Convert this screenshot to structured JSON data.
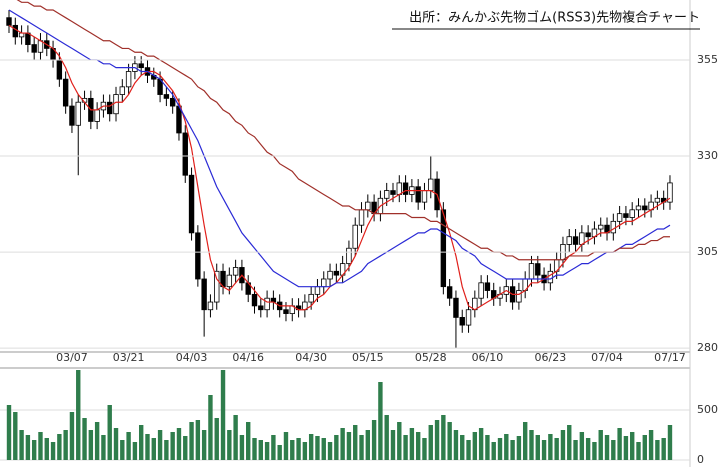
{
  "chart_data": {
    "type": "candlestick",
    "title": "出所：みんかぶ先物ゴム(RSS3)先物複合チャート",
    "categories": [
      null,
      null,
      null,
      null,
      null,
      null,
      null,
      null,
      null,
      null,
      "03/07",
      null,
      null,
      null,
      null,
      null,
      null,
      null,
      null,
      "03/21",
      null,
      null,
      null,
      null,
      null,
      null,
      null,
      null,
      null,
      "04/03",
      null,
      null,
      null,
      null,
      null,
      null,
      null,
      null,
      "04/16",
      null,
      null,
      null,
      null,
      null,
      null,
      null,
      null,
      null,
      "04/30",
      null,
      null,
      null,
      null,
      null,
      null,
      null,
      null,
      "05/15",
      null,
      null,
      null,
      null,
      null,
      null,
      null,
      null,
      null,
      "05/28",
      null,
      null,
      null,
      null,
      null,
      null,
      null,
      null,
      "06/10",
      null,
      null,
      null,
      null,
      null,
      null,
      null,
      null,
      null,
      "06/23",
      null,
      null,
      null,
      null,
      null,
      null,
      null,
      null,
      "07/04",
      null,
      null,
      null,
      null,
      null,
      null,
      null,
      null,
      null,
      "07/17"
    ],
    "open": [
      366,
      364,
      361,
      362,
      359,
      357,
      360,
      358,
      355,
      350,
      343,
      338,
      344,
      345,
      339,
      342,
      344,
      341,
      346,
      348,
      352,
      354,
      353,
      351,
      350,
      346,
      345,
      343,
      336,
      325,
      310,
      298,
      290,
      292,
      300,
      296,
      299,
      301,
      297,
      294,
      291,
      290,
      293,
      292,
      290,
      289,
      291,
      290,
      292,
      294,
      296,
      298,
      300,
      299,
      302,
      306,
      312,
      316,
      318,
      315,
      319,
      321,
      320,
      323,
      320,
      322,
      318,
      321,
      324,
      316,
      296,
      293,
      288,
      286,
      290,
      293,
      297,
      295,
      293,
      294,
      296,
      292,
      295,
      298,
      302,
      299,
      297,
      300,
      303,
      307,
      309,
      307,
      310,
      309,
      311,
      312,
      310,
      313,
      315,
      314,
      316,
      317,
      316,
      318,
      319,
      318
    ],
    "high": [
      368,
      366,
      364,
      364,
      361,
      362,
      362,
      360,
      357,
      352,
      345,
      346,
      347,
      347,
      344,
      346,
      346,
      348,
      350,
      354,
      356,
      356,
      355,
      353,
      352,
      348,
      347,
      345,
      338,
      327,
      312,
      300,
      294,
      302,
      302,
      301,
      303,
      303,
      299,
      296,
      293,
      295,
      295,
      294,
      292,
      293,
      293,
      294,
      296,
      298,
      300,
      302,
      302,
      304,
      308,
      314,
      318,
      320,
      320,
      321,
      323,
      323,
      325,
      325,
      324,
      324,
      323,
      330,
      326,
      318,
      298,
      295,
      290,
      292,
      295,
      299,
      299,
      297,
      296,
      298,
      298,
      297,
      300,
      304,
      304,
      301,
      302,
      305,
      309,
      311,
      311,
      312,
      312,
      313,
      314,
      314,
      315,
      317,
      317,
      318,
      319,
      319,
      320,
      321,
      321,
      325
    ],
    "low": [
      362,
      359,
      359,
      357,
      355,
      355,
      356,
      353,
      348,
      341,
      336,
      325,
      342,
      337,
      337,
      340,
      339,
      339,
      344,
      346,
      350,
      351,
      349,
      348,
      344,
      343,
      341,
      334,
      323,
      308,
      296,
      283,
      288,
      290,
      294,
      294,
      297,
      295,
      292,
      289,
      288,
      288,
      290,
      288,
      287,
      287,
      288,
      288,
      290,
      292,
      294,
      296,
      297,
      297,
      300,
      304,
      310,
      314,
      313,
      313,
      317,
      318,
      318,
      318,
      318,
      316,
      316,
      319,
      314,
      294,
      291,
      280,
      284,
      284,
      288,
      291,
      293,
      291,
      291,
      292,
      290,
      290,
      293,
      296,
      297,
      295,
      295,
      298,
      301,
      305,
      305,
      305,
      307,
      307,
      309,
      308,
      308,
      311,
      312,
      312,
      314,
      314,
      314,
      316,
      316,
      316
    ],
    "close": [
      364,
      361,
      362,
      359,
      357,
      360,
      358,
      355,
      350,
      343,
      338,
      344,
      345,
      339,
      342,
      344,
      341,
      346,
      348,
      352,
      354,
      353,
      351,
      350,
      346,
      345,
      343,
      336,
      325,
      310,
      298,
      290,
      292,
      300,
      296,
      299,
      301,
      297,
      294,
      291,
      290,
      293,
      292,
      290,
      289,
      291,
      290,
      292,
      294,
      296,
      298,
      300,
      299,
      302,
      306,
      312,
      316,
      318,
      315,
      319,
      321,
      320,
      323,
      320,
      322,
      318,
      321,
      324,
      316,
      296,
      293,
      288,
      286,
      290,
      293,
      297,
      295,
      293,
      294,
      296,
      292,
      295,
      298,
      302,
      299,
      297,
      300,
      303,
      307,
      309,
      307,
      310,
      309,
      311,
      312,
      310,
      313,
      315,
      314,
      316,
      317,
      316,
      318,
      319,
      318,
      323
    ],
    "up_color": "#ffffff",
    "down_color": "#000000",
    "ylim": [
      279,
      370.6
    ],
    "yticks": [
      280,
      305,
      330,
      355
    ],
    "grid": true,
    "moving_averages": [
      {
        "color": "#e0201b",
        "values": [
          364,
          363,
          362,
          362,
          361,
          360,
          359,
          358,
          356,
          353,
          349,
          346,
          344,
          342,
          342,
          343,
          343,
          344,
          344,
          346,
          349,
          351,
          352,
          352,
          351,
          349,
          347,
          344,
          339,
          332,
          322,
          312,
          303,
          298,
          296,
          295,
          297,
          299,
          297,
          295,
          293,
          292,
          292,
          291,
          291,
          291,
          290,
          290,
          291,
          293,
          294,
          296,
          297,
          299,
          301,
          304,
          308,
          312,
          315,
          317,
          318,
          319,
          320,
          321,
          321,
          321,
          321,
          321,
          320,
          315,
          310,
          304,
          296,
          291,
          290,
          291,
          292,
          293,
          294,
          295,
          294,
          294,
          295,
          297,
          297,
          298,
          299,
          300,
          302,
          304,
          305,
          307,
          308,
          309,
          310,
          310,
          311,
          312,
          313,
          313,
          314,
          315,
          316,
          317,
          318,
          319
        ]
      },
      {
        "color": "#2b2bd6",
        "values": [
          368,
          367,
          366,
          365,
          364,
          363,
          362,
          361,
          360,
          359,
          358,
          357,
          356,
          355,
          355,
          354,
          354,
          353,
          353,
          353,
          353,
          352,
          352,
          351,
          350,
          348,
          346,
          343,
          340,
          337,
          334,
          330,
          326,
          322,
          319,
          316,
          313,
          310,
          308,
          306,
          304,
          302,
          300,
          299,
          298,
          297,
          296,
          296,
          296,
          296,
          296,
          296,
          297,
          297,
          298,
          299,
          300,
          302,
          303,
          304,
          305,
          306,
          307,
          308,
          309,
          310,
          310,
          311,
          311,
          310,
          309,
          308,
          306,
          305,
          304,
          302,
          301,
          300,
          299,
          298,
          298,
          298,
          298,
          298,
          298,
          298,
          298,
          299,
          299,
          300,
          301,
          302,
          302,
          303,
          304,
          305,
          305,
          306,
          307,
          307,
          308,
          309,
          310,
          311,
          311,
          312
        ]
      },
      {
        "color": "#a0302a",
        "values": [
          372,
          371,
          370,
          370,
          369,
          369,
          368,
          368,
          367,
          366,
          365,
          364,
          363,
          362,
          361,
          360,
          360,
          359,
          358,
          358,
          357,
          357,
          356,
          356,
          355,
          354,
          353,
          352,
          351,
          350,
          348,
          347,
          345,
          344,
          342,
          341,
          339,
          338,
          336,
          335,
          333,
          331,
          330,
          328,
          327,
          326,
          324,
          323,
          322,
          321,
          320,
          319,
          318,
          317,
          317,
          316,
          316,
          316,
          315,
          315,
          315,
          315,
          315,
          315,
          314,
          314,
          314,
          313,
          313,
          312,
          311,
          310,
          309,
          308,
          307,
          306,
          306,
          305,
          305,
          304,
          304,
          303,
          303,
          303,
          303,
          303,
          303,
          303,
          303,
          304,
          304,
          304,
          304,
          305,
          305,
          305,
          305,
          306,
          306,
          306,
          307,
          307,
          308,
          308,
          309,
          309
        ]
      }
    ],
    "volume": {
      "color": "#2f7d4c",
      "ylim": [
        0,
        900
      ],
      "yticks": [
        0,
        500
      ],
      "values": [
        550,
        480,
        300,
        250,
        200,
        280,
        220,
        180,
        260,
        300,
        480,
        900,
        420,
        300,
        380,
        250,
        550,
        320,
        200,
        280,
        180,
        350,
        260,
        220,
        300,
        200,
        280,
        320,
        240,
        380,
        400,
        300,
        650,
        420,
        900,
        300,
        450,
        250,
        380,
        220,
        200,
        180,
        250,
        150,
        280,
        200,
        220,
        180,
        260,
        240,
        220,
        180,
        250,
        320,
        280,
        350,
        250,
        300,
        400,
        780,
        450,
        300,
        380,
        250,
        320,
        280,
        220,
        350,
        400,
        450,
        380,
        300,
        250,
        200,
        280,
        320,
        250,
        180,
        220,
        260,
        200,
        240,
        380,
        300,
        250,
        200,
        260,
        220,
        300,
        350,
        200,
        280,
        220,
        180,
        300,
        250,
        200,
        320,
        240,
        280,
        180,
        250,
        300,
        200,
        220,
        350
      ]
    }
  }
}
